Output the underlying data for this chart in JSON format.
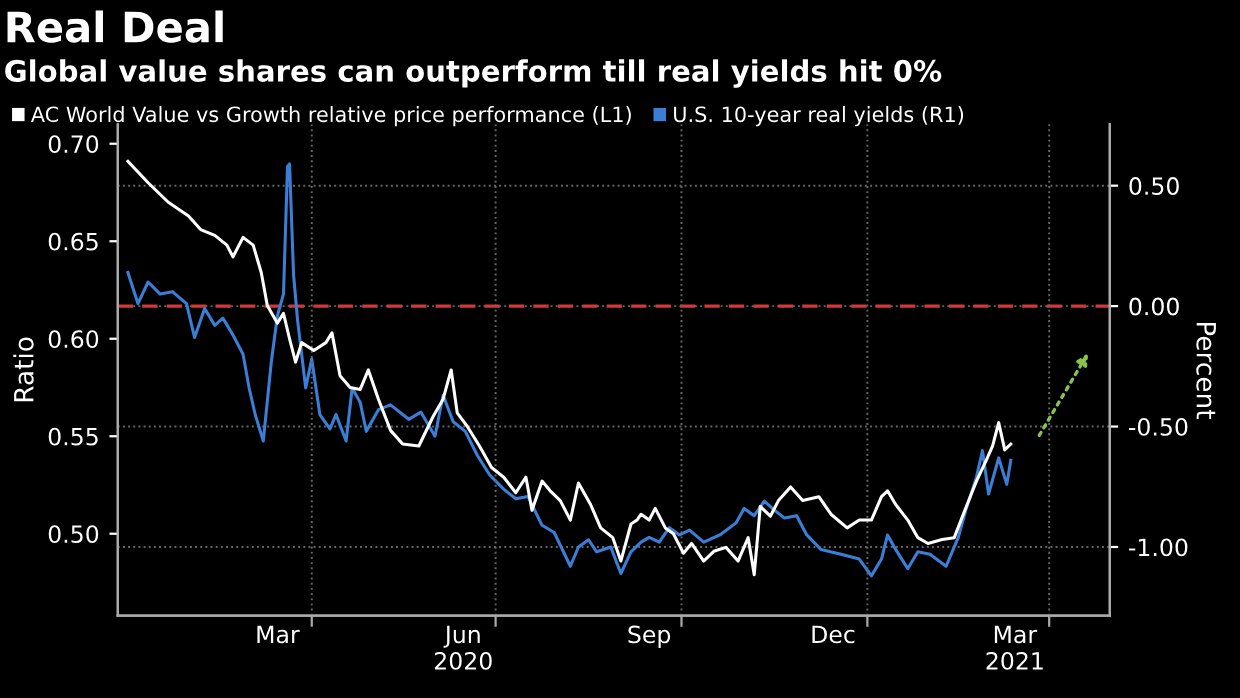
{
  "chart_data": {
    "type": "line",
    "title": "Real Deal",
    "subtitle": "Global value shares can outperform till real yields hit 0%",
    "ylabel": "Ratio",
    "y2label": "Percent",
    "legend": "top left",
    "grid": true,
    "xlim": [
      "2019-12-27",
      "2021-05-01"
    ],
    "xticks": [
      {
        "value": "2020-03-15",
        "label": "Mar"
      },
      {
        "value": "2020-04-01",
        "label": null
      },
      {
        "value": "2020-06-15",
        "label": "Jun\n2020"
      },
      {
        "value": "2020-07-01",
        "label": null
      },
      {
        "value": "2020-09-15",
        "label": "Sep"
      },
      {
        "value": "2020-10-01",
        "label": null
      },
      {
        "value": "2020-12-15",
        "label": "Dec"
      },
      {
        "value": "2021-01-01",
        "label": null
      },
      {
        "value": "2021-03-15",
        "label": "Mar\n2021"
      },
      {
        "value": "2021-04-01",
        "label": null
      }
    ],
    "ylim": [
      0.458,
      0.71
    ],
    "yticks": [
      {
        "value": 0.5,
        "label": "0.50"
      },
      {
        "value": 0.55,
        "label": "0.55"
      },
      {
        "value": 0.6,
        "label": "0.60"
      },
      {
        "value": 0.65,
        "label": "0.65"
      },
      {
        "value": 0.7,
        "label": "0.70"
      }
    ],
    "y2lim": [
      -1.285,
      0.755
    ],
    "y2ticks": [
      {
        "value": -1.0,
        "label": "-1.00"
      },
      {
        "value": -0.5,
        "label": "-0.50"
      },
      {
        "value": 0.0,
        "label": "0.00"
      },
      {
        "value": 0.5,
        "label": "0.50"
      }
    ],
    "ref_lines": [
      {
        "axis": "y2",
        "value": 0,
        "color": "#d03a3a",
        "line_style": "dashed"
      }
    ],
    "series": [
      {
        "name": "AC World Value vs Growth relative price performance (L1)",
        "color": "#ffffff",
        "x": [
          "2020-01-01",
          "2020-01-11",
          "2020-01-16",
          "2020-01-21",
          "2020-01-31",
          "2020-02-06",
          "2020-02-13",
          "2020-02-19",
          "2020-02-22",
          "2020-02-27",
          "2020-03-03",
          "2020-03-07",
          "2020-03-10",
          "2020-03-15",
          "2020-03-18",
          "2020-03-21",
          "2020-03-24",
          "2020-03-27",
          "2020-04-02",
          "2020-04-08",
          "2020-04-11",
          "2020-04-15",
          "2020-04-20",
          "2020-04-25",
          "2020-04-29",
          "2020-05-04",
          "2020-05-10",
          "2020-05-16",
          "2020-05-24",
          "2020-05-31",
          "2020-06-05",
          "2020-06-09",
          "2020-06-12",
          "2020-06-17",
          "2020-06-23",
          "2020-06-29",
          "2020-07-05",
          "2020-07-11",
          "2020-07-16",
          "2020-07-19",
          "2020-07-24",
          "2020-07-28",
          "2020-08-02",
          "2020-08-07",
          "2020-08-11",
          "2020-08-17",
          "2020-08-22",
          "2020-08-28",
          "2020-09-01",
          "2020-09-06",
          "2020-09-09",
          "2020-09-11",
          "2020-09-15",
          "2020-09-18",
          "2020-09-23",
          "2020-09-27",
          "2020-10-02",
          "2020-10-06",
          "2020-10-12",
          "2020-10-17",
          "2020-10-23",
          "2020-10-29",
          "2020-11-03",
          "2020-11-06",
          "2020-11-09",
          "2020-11-14",
          "2020-11-18",
          "2020-11-24",
          "2020-11-30",
          "2020-12-08",
          "2020-12-14",
          "2020-12-22",
          "2020-12-28",
          "2021-01-03",
          "2021-01-08",
          "2021-01-11",
          "2021-01-15",
          "2021-01-21",
          "2021-01-26",
          "2021-01-31",
          "2021-02-07",
          "2021-02-13",
          "2021-02-19",
          "2021-02-24",
          "2021-03-01",
          "2021-03-04",
          "2021-03-07",
          "2021-03-10",
          "2021-03-13"
        ],
        "values": [
          0.691,
          0.68,
          0.675,
          0.67,
          0.663,
          0.656,
          0.653,
          0.648,
          0.642,
          0.652,
          0.648,
          0.634,
          0.617,
          0.608,
          0.613,
          0.6,
          0.588,
          0.598,
          0.594,
          0.598,
          0.603,
          0.581,
          0.575,
          0.574,
          0.584,
          0.569,
          0.553,
          0.546,
          0.545,
          0.56,
          0.569,
          0.584,
          0.562,
          0.555,
          0.545,
          0.534,
          0.529,
          0.521,
          0.529,
          0.512,
          0.527,
          0.522,
          0.517,
          0.507,
          0.526,
          0.515,
          0.503,
          0.498,
          0.486,
          0.505,
          0.507,
          0.51,
          0.507,
          0.513,
          0.503,
          0.5,
          0.49,
          0.495,
          0.486,
          0.491,
          0.493,
          0.486,
          0.498,
          0.479,
          0.514,
          0.509,
          0.517,
          0.524,
          0.517,
          0.519,
          0.51,
          0.503,
          0.507,
          0.507,
          0.519,
          0.522,
          0.515,
          0.507,
          0.498,
          0.495,
          0.497,
          0.498,
          0.514,
          0.527,
          0.538,
          0.545,
          0.557,
          0.543,
          0.546
        ]
      },
      {
        "name": "U.S. 10-year real yields (R1)",
        "color": "#3a7fd5",
        "axis": "y2",
        "x": [
          "2020-01-01",
          "2020-01-06",
          "2020-01-11",
          "2020-01-17",
          "2020-01-23",
          "2020-01-30",
          "2020-02-03",
          "2020-02-08",
          "2020-02-13",
          "2020-02-17",
          "2020-02-22",
          "2020-02-27",
          "2020-03-01",
          "2020-03-04",
          "2020-03-08",
          "2020-03-12",
          "2020-03-15",
          "2020-03-18",
          "2020-03-20",
          "2020-03-21",
          "2020-03-23",
          "2020-03-25",
          "2020-03-29",
          "2020-04-01",
          "2020-04-05",
          "2020-04-10",
          "2020-04-13",
          "2020-04-18",
          "2020-04-21",
          "2020-04-25",
          "2020-04-28",
          "2020-05-04",
          "2020-05-10",
          "2020-05-19",
          "2020-05-25",
          "2020-06-01",
          "2020-06-05",
          "2020-06-10",
          "2020-06-16",
          "2020-06-22",
          "2020-06-28",
          "2020-07-05",
          "2020-07-11",
          "2020-07-17",
          "2020-07-24",
          "2020-07-30",
          "2020-08-07",
          "2020-08-11",
          "2020-08-16",
          "2020-08-20",
          "2020-08-27",
          "2020-09-01",
          "2020-09-06",
          "2020-09-11",
          "2020-09-15",
          "2020-09-20",
          "2020-09-25",
          "2020-09-30",
          "2020-10-05",
          "2020-10-12",
          "2020-10-20",
          "2020-10-28",
          "2020-11-01",
          "2020-11-06",
          "2020-11-11",
          "2020-11-15",
          "2020-11-21",
          "2020-11-27",
          "2020-12-02",
          "2020-12-09",
          "2020-12-19",
          "2020-12-28",
          "2021-01-03",
          "2021-01-08",
          "2021-01-11",
          "2021-01-15",
          "2021-01-21",
          "2021-01-26",
          "2021-02-01",
          "2021-02-09",
          "2021-02-15",
          "2021-02-19",
          "2021-02-24",
          "2021-02-27",
          "2021-03-02",
          "2021-03-07",
          "2021-03-11",
          "2021-03-13"
        ],
        "values": [
          0.14,
          0.01,
          0.1,
          0.05,
          0.06,
          0.01,
          -0.13,
          -0.01,
          -0.08,
          -0.05,
          -0.12,
          -0.2,
          -0.34,
          -0.45,
          -0.56,
          -0.23,
          -0.04,
          0.05,
          0.58,
          0.59,
          0.13,
          -0.06,
          -0.34,
          -0.22,
          -0.45,
          -0.51,
          -0.45,
          -0.56,
          -0.34,
          -0.4,
          -0.52,
          -0.43,
          -0.41,
          -0.47,
          -0.44,
          -0.54,
          -0.37,
          -0.48,
          -0.52,
          -0.62,
          -0.7,
          -0.76,
          -0.8,
          -0.79,
          -0.91,
          -0.94,
          -1.08,
          -1.0,
          -0.97,
          -1.02,
          -1.0,
          -1.11,
          -1.02,
          -0.98,
          -0.96,
          -0.98,
          -0.92,
          -0.95,
          -0.93,
          -0.98,
          -0.95,
          -0.9,
          -0.84,
          -0.87,
          -0.81,
          -0.84,
          -0.88,
          -0.87,
          -0.95,
          -1.01,
          -1.03,
          -1.05,
          -1.12,
          -1.05,
          -0.95,
          -1.01,
          -1.09,
          -1.02,
          -1.03,
          -1.08,
          -0.96,
          -0.84,
          -0.71,
          -0.6,
          -0.78,
          -0.63,
          -0.74,
          -0.64
        ]
      }
    ]
  }
}
